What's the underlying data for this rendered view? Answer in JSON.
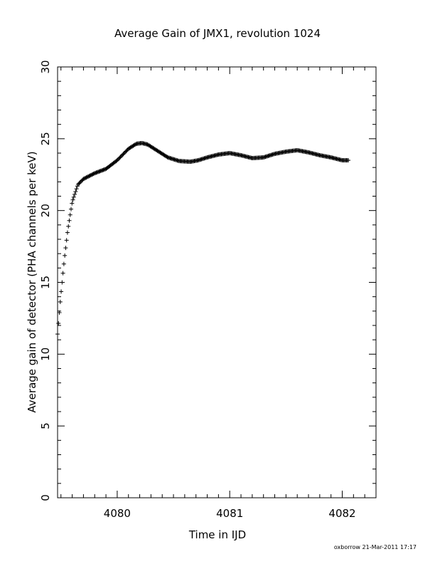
{
  "chart_data": {
    "type": "scatter",
    "marker": "plus",
    "title": "Average Gain of JMX1, revolution 1024",
    "xlabel": "Time in IJD",
    "ylabel": "Average gain of detector (PHA channels per keV)",
    "xlim": [
      4079.47,
      4082.3
    ],
    "ylim": [
      0,
      30
    ],
    "x_ticks": [
      4080,
      4081,
      4082
    ],
    "y_ticks": [
      0,
      5,
      10,
      15,
      20,
      25,
      30
    ],
    "grid": false,
    "colors": {
      "marker": "#000000",
      "axes": "#000000",
      "background": "#ffffff"
    },
    "series": [
      {
        "curve_points": {
          "x": [
            4079.47,
            4079.5,
            4079.53,
            4079.56,
            4079.6,
            4079.65,
            4079.7,
            4079.8,
            4079.9,
            4080.0,
            4080.1,
            4080.17,
            4080.22,
            4080.27,
            4080.35,
            4080.45,
            4080.55,
            4080.65,
            4080.72,
            4080.8,
            4080.9,
            4081.0,
            4081.1,
            4081.2,
            4081.3,
            4081.4,
            4081.5,
            4081.6,
            4081.7,
            4081.8,
            4081.9,
            4082.0,
            4082.06
          ],
          "y": [
            11.4,
            14.2,
            16.6,
            18.6,
            20.6,
            21.8,
            22.2,
            22.6,
            22.9,
            23.5,
            24.3,
            24.65,
            24.7,
            24.6,
            24.2,
            23.7,
            23.45,
            23.4,
            23.5,
            23.7,
            23.9,
            24.0,
            23.85,
            23.65,
            23.7,
            23.95,
            24.1,
            24.2,
            24.05,
            23.85,
            23.7,
            23.5,
            23.5
          ]
        }
      }
    ]
  },
  "footer_text": "oxborrow 21-Mar-2011 17:17"
}
